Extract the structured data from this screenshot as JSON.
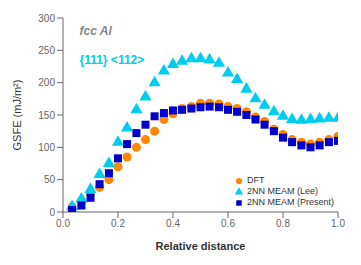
{
  "chart_data": {
    "type": "scatter",
    "xlabel": "Relative distance",
    "ylabel": "GSFE (mJ/m²)",
    "xlim": [
      0.0,
      1.0
    ],
    "ylim": [
      0,
      300
    ],
    "xticks": [
      {
        "value": 0,
        "label": "0.0"
      },
      0.2,
      0.4,
      0.6,
      0.8,
      {
        "value": 1,
        "label": "1.0"
      }
    ],
    "yticks": [
      0,
      50,
      100,
      150,
      200,
      250,
      300
    ],
    "grid": false,
    "legend": "lower right",
    "annotations": [
      {
        "text": "fcc Al",
        "color": "#888888"
      },
      {
        "text": "{111} <112>",
        "color": "#00ccee"
      }
    ],
    "series": [
      {
        "name": "DFT",
        "color": "#ff8800",
        "marker": "circle",
        "x": [
          0.033,
          0.067,
          0.1,
          0.133,
          0.167,
          0.2,
          0.233,
          0.267,
          0.3,
          0.333,
          0.367,
          0.4,
          0.433,
          0.467,
          0.5,
          0.533,
          0.567,
          0.6,
          0.633,
          0.667,
          0.7,
          0.733,
          0.767,
          0.8,
          0.833,
          0.867,
          0.9,
          0.933,
          0.967,
          1.0
        ],
        "values": [
          8,
          17,
          28,
          38,
          50,
          70,
          85,
          100,
          112,
          125,
          143,
          152,
          160,
          163,
          168,
          168,
          167,
          163,
          160,
          155,
          147,
          140,
          128,
          120,
          112,
          108,
          105,
          108,
          112,
          117
        ]
      },
      {
        "name": "2NN MEAM (Lee)",
        "color": "#00ccee",
        "marker": "triangle",
        "x": [
          0.033,
          0.067,
          0.1,
          0.133,
          0.167,
          0.2,
          0.233,
          0.267,
          0.3,
          0.333,
          0.367,
          0.4,
          0.433,
          0.467,
          0.5,
          0.533,
          0.567,
          0.6,
          0.633,
          0.667,
          0.7,
          0.733,
          0.767,
          0.8,
          0.833,
          0.867,
          0.9,
          0.933,
          0.967,
          1.0
        ],
        "values": [
          8,
          20,
          35,
          58,
          75,
          108,
          130,
          158,
          178,
          200,
          218,
          228,
          233,
          237,
          237,
          235,
          230,
          215,
          205,
          190,
          175,
          165,
          155,
          148,
          143,
          142,
          143,
          144,
          145,
          145
        ]
      },
      {
        "name": "2NN MEAM (Present)",
        "color": "#0000cc",
        "marker": "square",
        "x": [
          0.033,
          0.067,
          0.1,
          0.133,
          0.167,
          0.2,
          0.233,
          0.267,
          0.3,
          0.333,
          0.367,
          0.4,
          0.433,
          0.467,
          0.5,
          0.533,
          0.567,
          0.6,
          0.633,
          0.667,
          0.7,
          0.733,
          0.767,
          0.8,
          0.833,
          0.867,
          0.9,
          0.933,
          0.967,
          1.0
        ],
        "values": [
          3,
          10,
          22,
          43,
          60,
          83,
          105,
          122,
          135,
          148,
          153,
          157,
          158,
          160,
          162,
          163,
          162,
          158,
          155,
          150,
          143,
          135,
          125,
          115,
          108,
          103,
          100,
          103,
          108,
          110
        ]
      }
    ]
  }
}
